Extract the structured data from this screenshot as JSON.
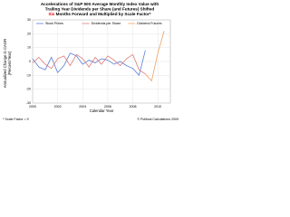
{
  "chart_data": {
    "type": "line",
    "title": {
      "lines": [
        "Accelerations of S&P 500 Average Monthly Index Value with",
        "Trailing Year Dividends per Share (and Futures) Shifted"
      ],
      "last_line": [
        "Six",
        " Months Forward and Multiplied by Scale Factor*"
      ],
      "highlight_color": "#e8000b"
    },
    "x_label": "Calendar Year",
    "y_label": [
      "Annualized Change in CAGR",
      "(Percent/Year)"
    ],
    "footnote": "* Scale Factor = 9",
    "credit": "© Political Calculations 2009",
    "xlim": [
      2000,
      2011
    ],
    "xticks": [
      2000,
      2002,
      2004,
      2006,
      2008,
      2010
    ],
    "ylim": [
      -30,
      30
    ],
    "yticks": [
      -30,
      -20,
      -10,
      0,
      10,
      20,
      30
    ],
    "grid": true,
    "series": [
      {
        "name": "Stock Prices",
        "color": "#5b7fd6",
        "x": [
          2000,
          2000.5,
          2001,
          2001.5,
          2002,
          2002.5,
          2003,
          2003.5,
          2004,
          2004.5,
          2005,
          2005.5,
          2006,
          2006.5,
          2007,
          2007.5,
          2008,
          2008.5,
          2009
        ],
        "values": [
          2,
          -4,
          -6,
          3,
          -8,
          -3,
          6,
          4,
          -2,
          1,
          -1,
          2,
          1,
          -2,
          0,
          -3,
          -5,
          -10,
          8
        ]
      },
      {
        "name": "Dividends per Share",
        "color": "#e07a7a",
        "x": [
          2000,
          2000.5,
          2001,
          2001.5,
          2002,
          2002.5,
          2003,
          2003.5,
          2004,
          2004.5,
          2005,
          2005.5,
          2006,
          2006.5,
          2007,
          2007.5,
          2008,
          2008.5,
          2009
        ],
        "values": [
          -1,
          3,
          -2,
          -5,
          2,
          4,
          -3,
          5,
          2,
          -4,
          3,
          -2,
          4,
          1,
          -3,
          2,
          5,
          -6,
          -9
        ]
      },
      {
        "name": "Dividend Futures",
        "color": "#f0a060",
        "x": [
          2009,
          2009.5,
          2010,
          2010.5
        ],
        "values": [
          -9,
          -14,
          6,
          22
        ]
      }
    ]
  }
}
